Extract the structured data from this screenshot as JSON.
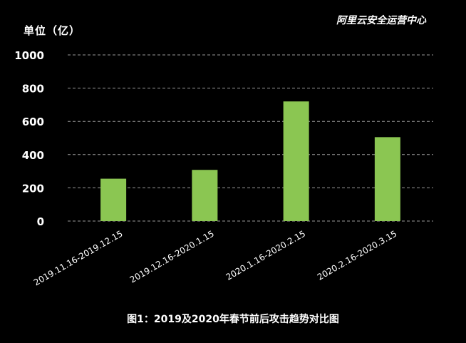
{
  "chart_data": {
    "type": "bar",
    "ylabel": "单位（亿）",
    "source": "阿里云安全运营中心",
    "caption": "图1：2019及2020年春节前后攻击趋势对比图",
    "categories": [
      "2019.11.16-2019.12.15",
      "2019.12.16-2020.1.15",
      "2020.1.16-2020.2.15",
      "2020.2.16-2020.3.15"
    ],
    "values": [
      255,
      308,
      720,
      505
    ],
    "ylim": [
      0,
      1000
    ],
    "yticks": [
      0,
      200,
      400,
      600,
      800,
      1000
    ],
    "grid": true,
    "bar_color": "#8bc652",
    "grid_color": "#9a9a9a",
    "background": "#000000"
  }
}
